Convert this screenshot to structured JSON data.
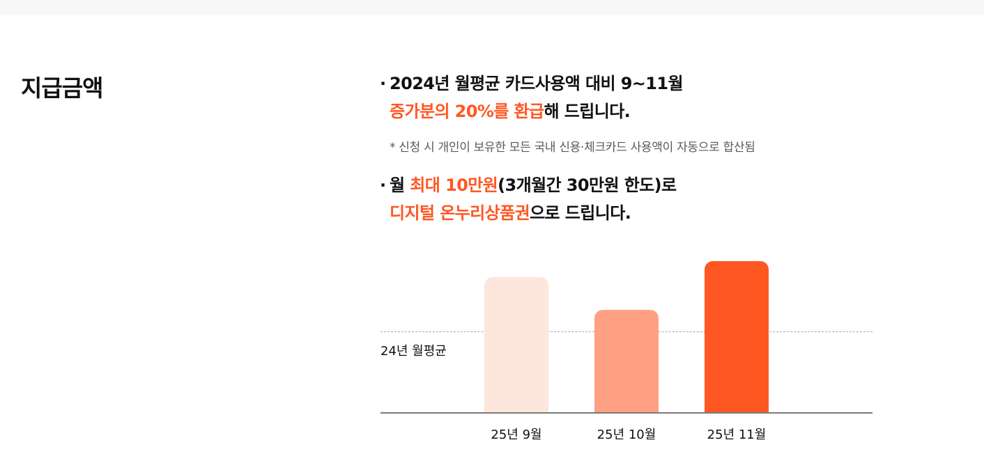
{
  "section": {
    "title": "지급금액"
  },
  "bullet1": {
    "line1": "2024년 월평균 카드사용액 대비 9~11월",
    "line2_highlight": "증가분의 20%를 환급",
    "line2_rest": "해 드립니다.",
    "note": "* 신청 시 개인이 보유한 모든 국내 신용·체크카드 사용액이 자동으로 합산됨"
  },
  "bullet2": {
    "line1_prefix": "월 ",
    "line1_highlight": "최대 10만원",
    "line1_rest": "(3개월간 30만원 한도)로",
    "line2_highlight": "디지털 온누리상품권",
    "line2_rest": "으로 드립니다."
  },
  "bullet_char": "·",
  "chart_data": {
    "type": "bar",
    "categories": [
      "25년 9월",
      "25년 10월",
      "25년 11월"
    ],
    "values": [
      1.67,
      1.27,
      1.87
    ],
    "baseline": {
      "label": "24년 월평균",
      "value": 1.0
    },
    "ylim": [
      0,
      2
    ],
    "colors": [
      "#fde6dc",
      "#ffa083",
      "#ff5722"
    ]
  },
  "colors": {
    "accent": "#ff5722",
    "text": "#111111",
    "note": "#555a60"
  }
}
